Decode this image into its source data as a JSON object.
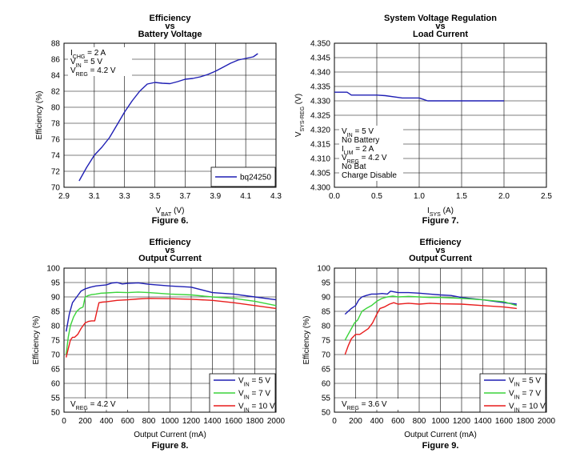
{
  "chart_data": [
    {
      "type": "line",
      "title": [
        "Efficiency",
        "vs",
        "Battery Voltage"
      ],
      "xlabel": {
        "main": "V",
        "sub": "BAT",
        "rest": " (V)"
      },
      "ylabel": {
        "main": "Efficiency (%)",
        "sub": "",
        "rest": ""
      },
      "xlim": [
        2.9,
        4.3
      ],
      "ylim": [
        70,
        88
      ],
      "xticks": [
        2.9,
        3.1,
        3.3,
        3.5,
        3.7,
        3.9,
        4.1,
        4.3
      ],
      "yticks": [
        70,
        72,
        74,
        76,
        78,
        80,
        82,
        84,
        86,
        88
      ],
      "xdec": 1,
      "ydec": 0,
      "caption": "Figure 6.",
      "annotation_lines": [
        [
          {
            "t": "I"
          },
          {
            "t": "CHG",
            "sub": true
          },
          {
            "t": " = 2 A"
          }
        ],
        [
          {
            "t": "V"
          },
          {
            "t": "IN",
            "sub": true
          },
          {
            "t": " = 5 V"
          }
        ],
        [
          {
            "t": "V"
          },
          {
            "t": "REG",
            "sub": true
          },
          {
            "t": " = 4.2 V"
          }
        ]
      ],
      "series": [
        {
          "name": "bq24250",
          "label": [
            {
              "t": "bq24250"
            }
          ],
          "color": "#1f1fb4",
          "x": [
            3.0,
            3.05,
            3.1,
            3.15,
            3.2,
            3.25,
            3.3,
            3.35,
            3.4,
            3.45,
            3.5,
            3.55,
            3.6,
            3.65,
            3.7,
            3.75,
            3.8,
            3.85,
            3.9,
            3.95,
            4.0,
            4.05,
            4.1,
            4.15,
            4.18
          ],
          "y": [
            70.8,
            72.5,
            74.0,
            75.0,
            76.2,
            77.8,
            79.4,
            80.8,
            82.0,
            82.9,
            83.1,
            83.0,
            82.95,
            83.2,
            83.5,
            83.6,
            83.8,
            84.1,
            84.5,
            85.0,
            85.5,
            85.9,
            86.1,
            86.3,
            86.7
          ]
        }
      ]
    },
    {
      "type": "line",
      "title": [
        "System Voltage Regulation",
        "vs",
        "Load Current"
      ],
      "xlabel": {
        "main": "I",
        "sub": "SYS",
        "rest": " (A)"
      },
      "ylabel": {
        "main": "V",
        "sub": "SYS-REG",
        "rest": " (V)"
      },
      "xlim": [
        0,
        2.5
      ],
      "ylim": [
        4.3,
        4.35
      ],
      "xticks": [
        0,
        0.5,
        1.0,
        1.5,
        2.0,
        2.5
      ],
      "yticks": [
        4.3,
        4.305,
        4.31,
        4.315,
        4.32,
        4.325,
        4.33,
        4.335,
        4.34,
        4.345,
        4.35
      ],
      "xdec": 1,
      "ydec": 3,
      "caption": "Figure 7.",
      "annotation_lines": [
        [
          {
            "t": "V"
          },
          {
            "t": "IN",
            "sub": true
          },
          {
            "t": " = 5 V"
          }
        ],
        [
          {
            "t": "No Battery"
          }
        ],
        [
          {
            "t": "I"
          },
          {
            "t": "LIM",
            "sub": true
          },
          {
            "t": " = 2 A"
          }
        ],
        [
          {
            "t": "V"
          },
          {
            "t": "REG",
            "sub": true
          },
          {
            "t": " = 4.2 V"
          }
        ],
        [
          {
            "t": "No Bat"
          }
        ],
        [
          {
            "t": "Charge Disable"
          }
        ]
      ],
      "series": [
        {
          "name": "VSYS-REG",
          "label": [],
          "color": "#1f1fb4",
          "x": [
            0,
            0.15,
            0.2,
            0.5,
            0.6,
            0.75,
            0.8,
            1.0,
            1.05,
            1.1,
            1.2,
            1.5,
            1.8,
            2.0
          ],
          "y": [
            4.333,
            4.333,
            4.332,
            4.332,
            4.3318,
            4.3312,
            4.331,
            4.331,
            4.3305,
            4.33,
            4.33,
            4.33,
            4.33,
            4.33
          ]
        }
      ]
    },
    {
      "type": "line",
      "title": [
        "Efficiency",
        "vs",
        "Output Current"
      ],
      "xlabel": {
        "main": "Output Current (mA)",
        "sub": "",
        "rest": ""
      },
      "ylabel": {
        "main": "Efficiency (%)",
        "sub": "",
        "rest": ""
      },
      "xlim": [
        0,
        2000
      ],
      "ylim": [
        50,
        100
      ],
      "xticks": [
        0,
        200,
        400,
        600,
        800,
        1000,
        1200,
        1400,
        1600,
        1800,
        2000
      ],
      "yticks": [
        50,
        55,
        60,
        65,
        70,
        75,
        80,
        85,
        90,
        95,
        100
      ],
      "xdec": 0,
      "ydec": 0,
      "caption": "Figure 8.",
      "annotation_lines": [
        [
          {
            "t": "V"
          },
          {
            "t": "REG",
            "sub": true
          },
          {
            "t": " = 4.2 V"
          }
        ]
      ],
      "series": [
        {
          "name": "VIN = 5 V",
          "label": [
            {
              "t": "V"
            },
            {
              "t": "IN",
              "sub": true
            },
            {
              "t": " = 5 V"
            }
          ],
          "color": "#1f1fb4",
          "x": [
            20,
            50,
            80,
            120,
            160,
            200,
            250,
            300,
            350,
            400,
            450,
            500,
            550,
            600,
            700,
            800,
            1000,
            1200,
            1400,
            1600,
            1800,
            2000
          ],
          "y": [
            78,
            84,
            88,
            90,
            92,
            92.8,
            93.4,
            93.8,
            94,
            94.2,
            94.8,
            95,
            94.5,
            94.7,
            94.9,
            94.4,
            93.8,
            93.4,
            91.5,
            91,
            90,
            89
          ]
        },
        {
          "name": "VIN = 7 V",
          "label": [
            {
              "t": "V"
            },
            {
              "t": "IN",
              "sub": true
            },
            {
              "t": " = 7 V"
            }
          ],
          "color": "#3ad43a",
          "x": [
            20,
            40,
            60,
            90,
            120,
            150,
            180,
            200,
            230,
            260,
            300,
            350,
            400,
            500,
            600,
            700,
            800,
            1000,
            1200,
            1400,
            1600,
            1800,
            2000
          ],
          "y": [
            70,
            76,
            80,
            83,
            85,
            86,
            86.5,
            90,
            90.5,
            90.8,
            91,
            91.3,
            91.4,
            91.6,
            91.5,
            91.7,
            91.5,
            91,
            90.7,
            90,
            89.5,
            88.5,
            87
          ]
        },
        {
          "name": "VIN = 10 V",
          "label": [
            {
              "t": "V"
            },
            {
              "t": "IN",
              "sub": true
            },
            {
              "t": " = 10 V"
            }
          ],
          "color": "#e81c1c",
          "x": [
            20,
            40,
            60,
            80,
            100,
            130,
            160,
            180,
            200,
            230,
            260,
            290,
            310,
            330,
            360,
            400,
            500,
            600,
            700,
            800,
            1000,
            1200,
            1400,
            1600,
            1800,
            2000
          ],
          "y": [
            69,
            72,
            75,
            76,
            76,
            77,
            79,
            80,
            81,
            81.5,
            81.7,
            81.7,
            85,
            88,
            88.2,
            88.3,
            88.8,
            89,
            89.3,
            89.5,
            89.4,
            89.2,
            88.8,
            88,
            87,
            86
          ]
        }
      ]
    },
    {
      "type": "line",
      "title": [
        "Efficiency",
        "vs",
        "Output Current"
      ],
      "xlabel": {
        "main": "Output Current (mA)",
        "sub": "",
        "rest": ""
      },
      "ylabel": {
        "main": "Efficiency (%)",
        "sub": "",
        "rest": ""
      },
      "xlim": [
        0,
        2000
      ],
      "ylim": [
        50,
        100
      ],
      "xticks": [
        0,
        200,
        400,
        600,
        800,
        1000,
        1200,
        1400,
        1600,
        1800,
        2000
      ],
      "yticks": [
        50,
        55,
        60,
        65,
        70,
        75,
        80,
        85,
        90,
        95,
        100
      ],
      "xdec": 0,
      "ydec": 0,
      "caption": "Figure 9.",
      "annotation_lines": [
        [
          {
            "t": "V"
          },
          {
            "t": "REG",
            "sub": true
          },
          {
            "t": " = 3.6 V"
          }
        ]
      ],
      "series": [
        {
          "name": "VIN = 5 V",
          "label": [
            {
              "t": "V"
            },
            {
              "t": "IN",
              "sub": true
            },
            {
              "t": " = 5 V"
            }
          ],
          "color": "#1f1fb4",
          "x": [
            100,
            130,
            160,
            200,
            230,
            260,
            300,
            350,
            400,
            450,
            500,
            530,
            600,
            700,
            800,
            900,
            1000,
            1100,
            1200,
            1400,
            1600,
            1720
          ],
          "y": [
            84,
            85,
            86,
            87,
            89,
            90,
            90.5,
            91,
            91,
            91.2,
            91,
            92,
            91.5,
            91.5,
            91.3,
            91,
            90.7,
            90.5,
            89.8,
            89,
            88,
            87.5
          ]
        },
        {
          "name": "VIN = 7 V",
          "label": [
            {
              "t": "V"
            },
            {
              "t": "IN",
              "sub": true
            },
            {
              "t": " = 7 V"
            }
          ],
          "color": "#3ad43a",
          "x": [
            100,
            130,
            160,
            190,
            220,
            260,
            300,
            350,
            400,
            450,
            500,
            550,
            600,
            700,
            800,
            900,
            1000,
            1200,
            1400,
            1600,
            1720
          ],
          "y": [
            75,
            77,
            79,
            81,
            82,
            85,
            86,
            87,
            88.5,
            89.5,
            90,
            90.3,
            90,
            90.2,
            90,
            89.8,
            89.8,
            89.5,
            89,
            88.3,
            87
          ]
        },
        {
          "name": "VIN = 10 V",
          "label": [
            {
              "t": "V"
            },
            {
              "t": "IN",
              "sub": true
            },
            {
              "t": " = 10 V"
            }
          ],
          "color": "#e81c1c",
          "x": [
            100,
            130,
            160,
            200,
            240,
            280,
            320,
            360,
            400,
            430,
            470,
            520,
            560,
            600,
            700,
            800,
            900,
            1000,
            1200,
            1400,
            1600,
            1720
          ],
          "y": [
            70,
            73,
            75.5,
            77,
            77,
            78,
            79,
            81,
            84,
            86,
            86.5,
            87.5,
            88,
            87.5,
            87.8,
            87.5,
            87.8,
            87.6,
            87.5,
            87,
            86.5,
            86
          ]
        }
      ]
    }
  ]
}
